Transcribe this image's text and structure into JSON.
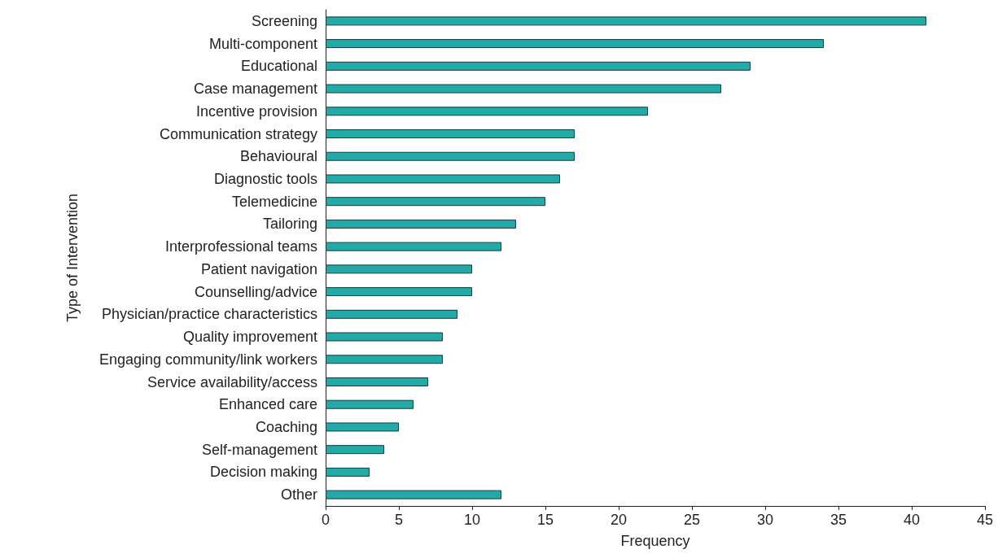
{
  "chart_data": {
    "type": "bar",
    "orientation": "horizontal",
    "xlabel": "Frequency",
    "ylabel": "Type of Intervention",
    "categories": [
      "Screening",
      "Multi-component",
      "Educational",
      "Case management",
      "Incentive provision",
      "Communication strategy",
      "Behavioural",
      "Diagnostic tools",
      "Telemedicine",
      "Tailoring",
      "Interprofessional teams",
      "Patient navigation",
      "Counselling/advice",
      "Physician/practice characteristics",
      "Quality improvement",
      "Engaging community/link workers",
      "Service availability/access",
      "Enhanced care",
      "Coaching",
      "Self-management",
      "Decision making",
      "Other"
    ],
    "values": [
      41,
      34,
      29,
      27,
      22,
      17,
      17,
      16,
      15,
      13,
      12,
      10,
      10,
      9,
      8,
      8,
      7,
      6,
      5,
      4,
      3,
      12
    ],
    "color": "#22aaa8",
    "xlim": [
      0,
      45
    ],
    "xticks": [
      0,
      5,
      10,
      15,
      20,
      25,
      30,
      35,
      40,
      45
    ],
    "grid": false
  }
}
